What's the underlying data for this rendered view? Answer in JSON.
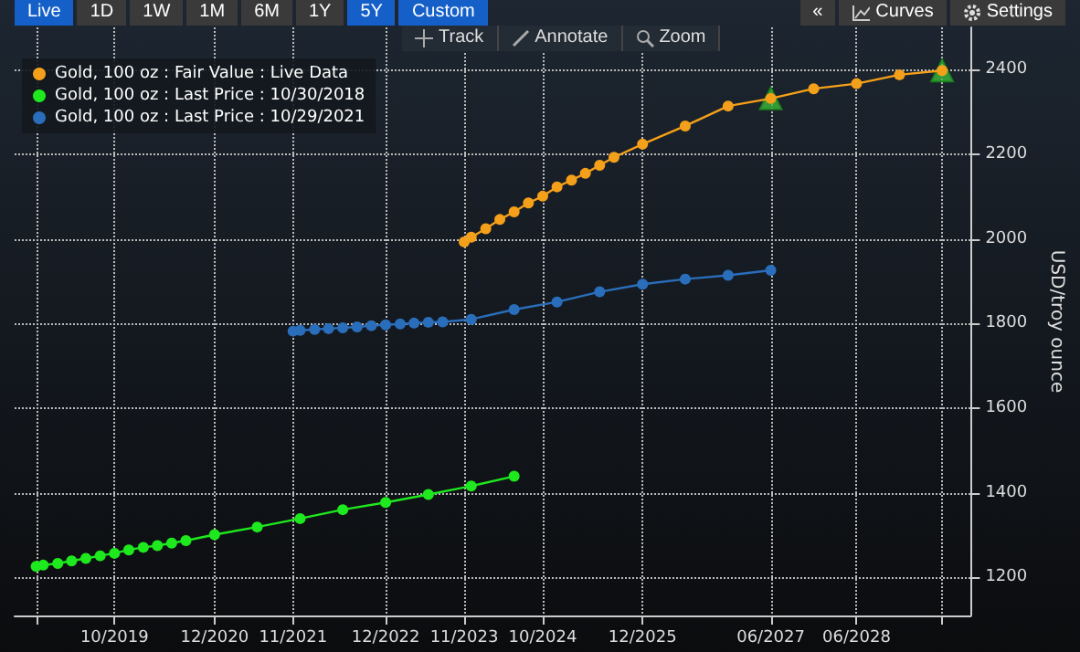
{
  "chart_data": {
    "type": "line",
    "ylabel": "USD/troy ounce",
    "annotations": [
      "Live",
      "1D",
      "1W",
      "1M",
      "6M",
      "1Y",
      "5Y",
      "Custom",
      "«",
      "Curves",
      "Settings",
      "Track",
      "Annotate",
      "Zoom"
    ],
    "xlim": [
      "2018-08",
      "2029-10"
    ],
    "xticks": [
      {
        "value": "2018-11",
        "label": null
      },
      {
        "value": "2019-10",
        "label": "10/2019"
      },
      {
        "value": "2020-12",
        "label": "12/2020"
      },
      {
        "value": "2021-11",
        "label": "11/2021"
      },
      {
        "value": "2022-12",
        "label": "12/2022"
      },
      {
        "value": "2023-11",
        "label": "11/2023"
      },
      {
        "value": "2024-10",
        "label": "10/2024"
      },
      {
        "value": "2025-12",
        "label": "12/2025"
      },
      {
        "value": "2027-06",
        "label": "06/2027"
      },
      {
        "value": "2028-06",
        "label": "06/2028"
      },
      {
        "value": "2029-06",
        "label": null
      }
    ],
    "ylim": [
      1110,
      2500
    ],
    "yticks": [
      1200,
      1400,
      1600,
      1800,
      2000,
      2200,
      2400
    ],
    "grid": true,
    "legend": "top left",
    "marker": "circle",
    "line_style": "solid",
    "series": [
      {
        "name": "Gold, 100 oz : Fair Value : Live Data",
        "color": "#f5a01a",
        "x": [
          "2023-11",
          "2023-12",
          "2024-02",
          "2024-04",
          "2024-06",
          "2024-08",
          "2024-10",
          "2024-12",
          "2025-02",
          "2025-04",
          "2025-06",
          "2025-08",
          "2025-12",
          "2026-06",
          "2026-12",
          "2027-06",
          "2027-12",
          "2028-06",
          "2028-12",
          "2029-06"
        ],
        "values": [
          1993,
          2004,
          2024,
          2046,
          2064,
          2085,
          2101,
          2123,
          2139,
          2155,
          2174,
          2193,
          2224,
          2267,
          2314,
          2332,
          2355,
          2367,
          2388,
          2398
        ]
      },
      {
        "name": "Gold, 100 oz : Last Price : 10/30/2018",
        "color": "#1ee81e",
        "x": [
          "2018-11",
          "2018-12",
          "2019-02",
          "2019-04",
          "2019-06",
          "2019-08",
          "2019-10",
          "2019-12",
          "2020-02",
          "2020-04",
          "2020-06",
          "2020-08",
          "2020-12",
          "2021-06",
          "2021-12",
          "2022-06",
          "2022-12",
          "2023-06",
          "2023-12",
          "2024-06"
        ],
        "values": [
          1226,
          1229,
          1233,
          1239,
          1245,
          1251,
          1257,
          1265,
          1271,
          1275,
          1281,
          1287,
          1301,
          1319,
          1339,
          1360,
          1377,
          1396,
          1416,
          1439
        ]
      },
      {
        "name": "Gold, 100 oz : Last Price : 10/29/2021",
        "color": "#2a6ebb",
        "x": [
          "2021-11",
          "2021-12",
          "2022-02",
          "2022-04",
          "2022-06",
          "2022-08",
          "2022-10",
          "2022-12",
          "2023-02",
          "2023-04",
          "2023-06",
          "2023-08",
          "2023-12",
          "2024-06",
          "2024-12",
          "2025-06",
          "2025-12",
          "2026-06",
          "2026-12",
          "2027-06"
        ],
        "values": [
          1782,
          1784,
          1786,
          1788,
          1790,
          1792,
          1795,
          1797,
          1799,
          1801,
          1803,
          1804,
          1810,
          1833,
          1851,
          1875,
          1893,
          1905,
          1914,
          1926
        ]
      },
      {
        "type": "scatter",
        "marker": "triangle",
        "color": "#3cb83c",
        "x": [
          "2027-06",
          "2029-06"
        ],
        "values": [
          2332,
          2398
        ]
      }
    ]
  }
}
